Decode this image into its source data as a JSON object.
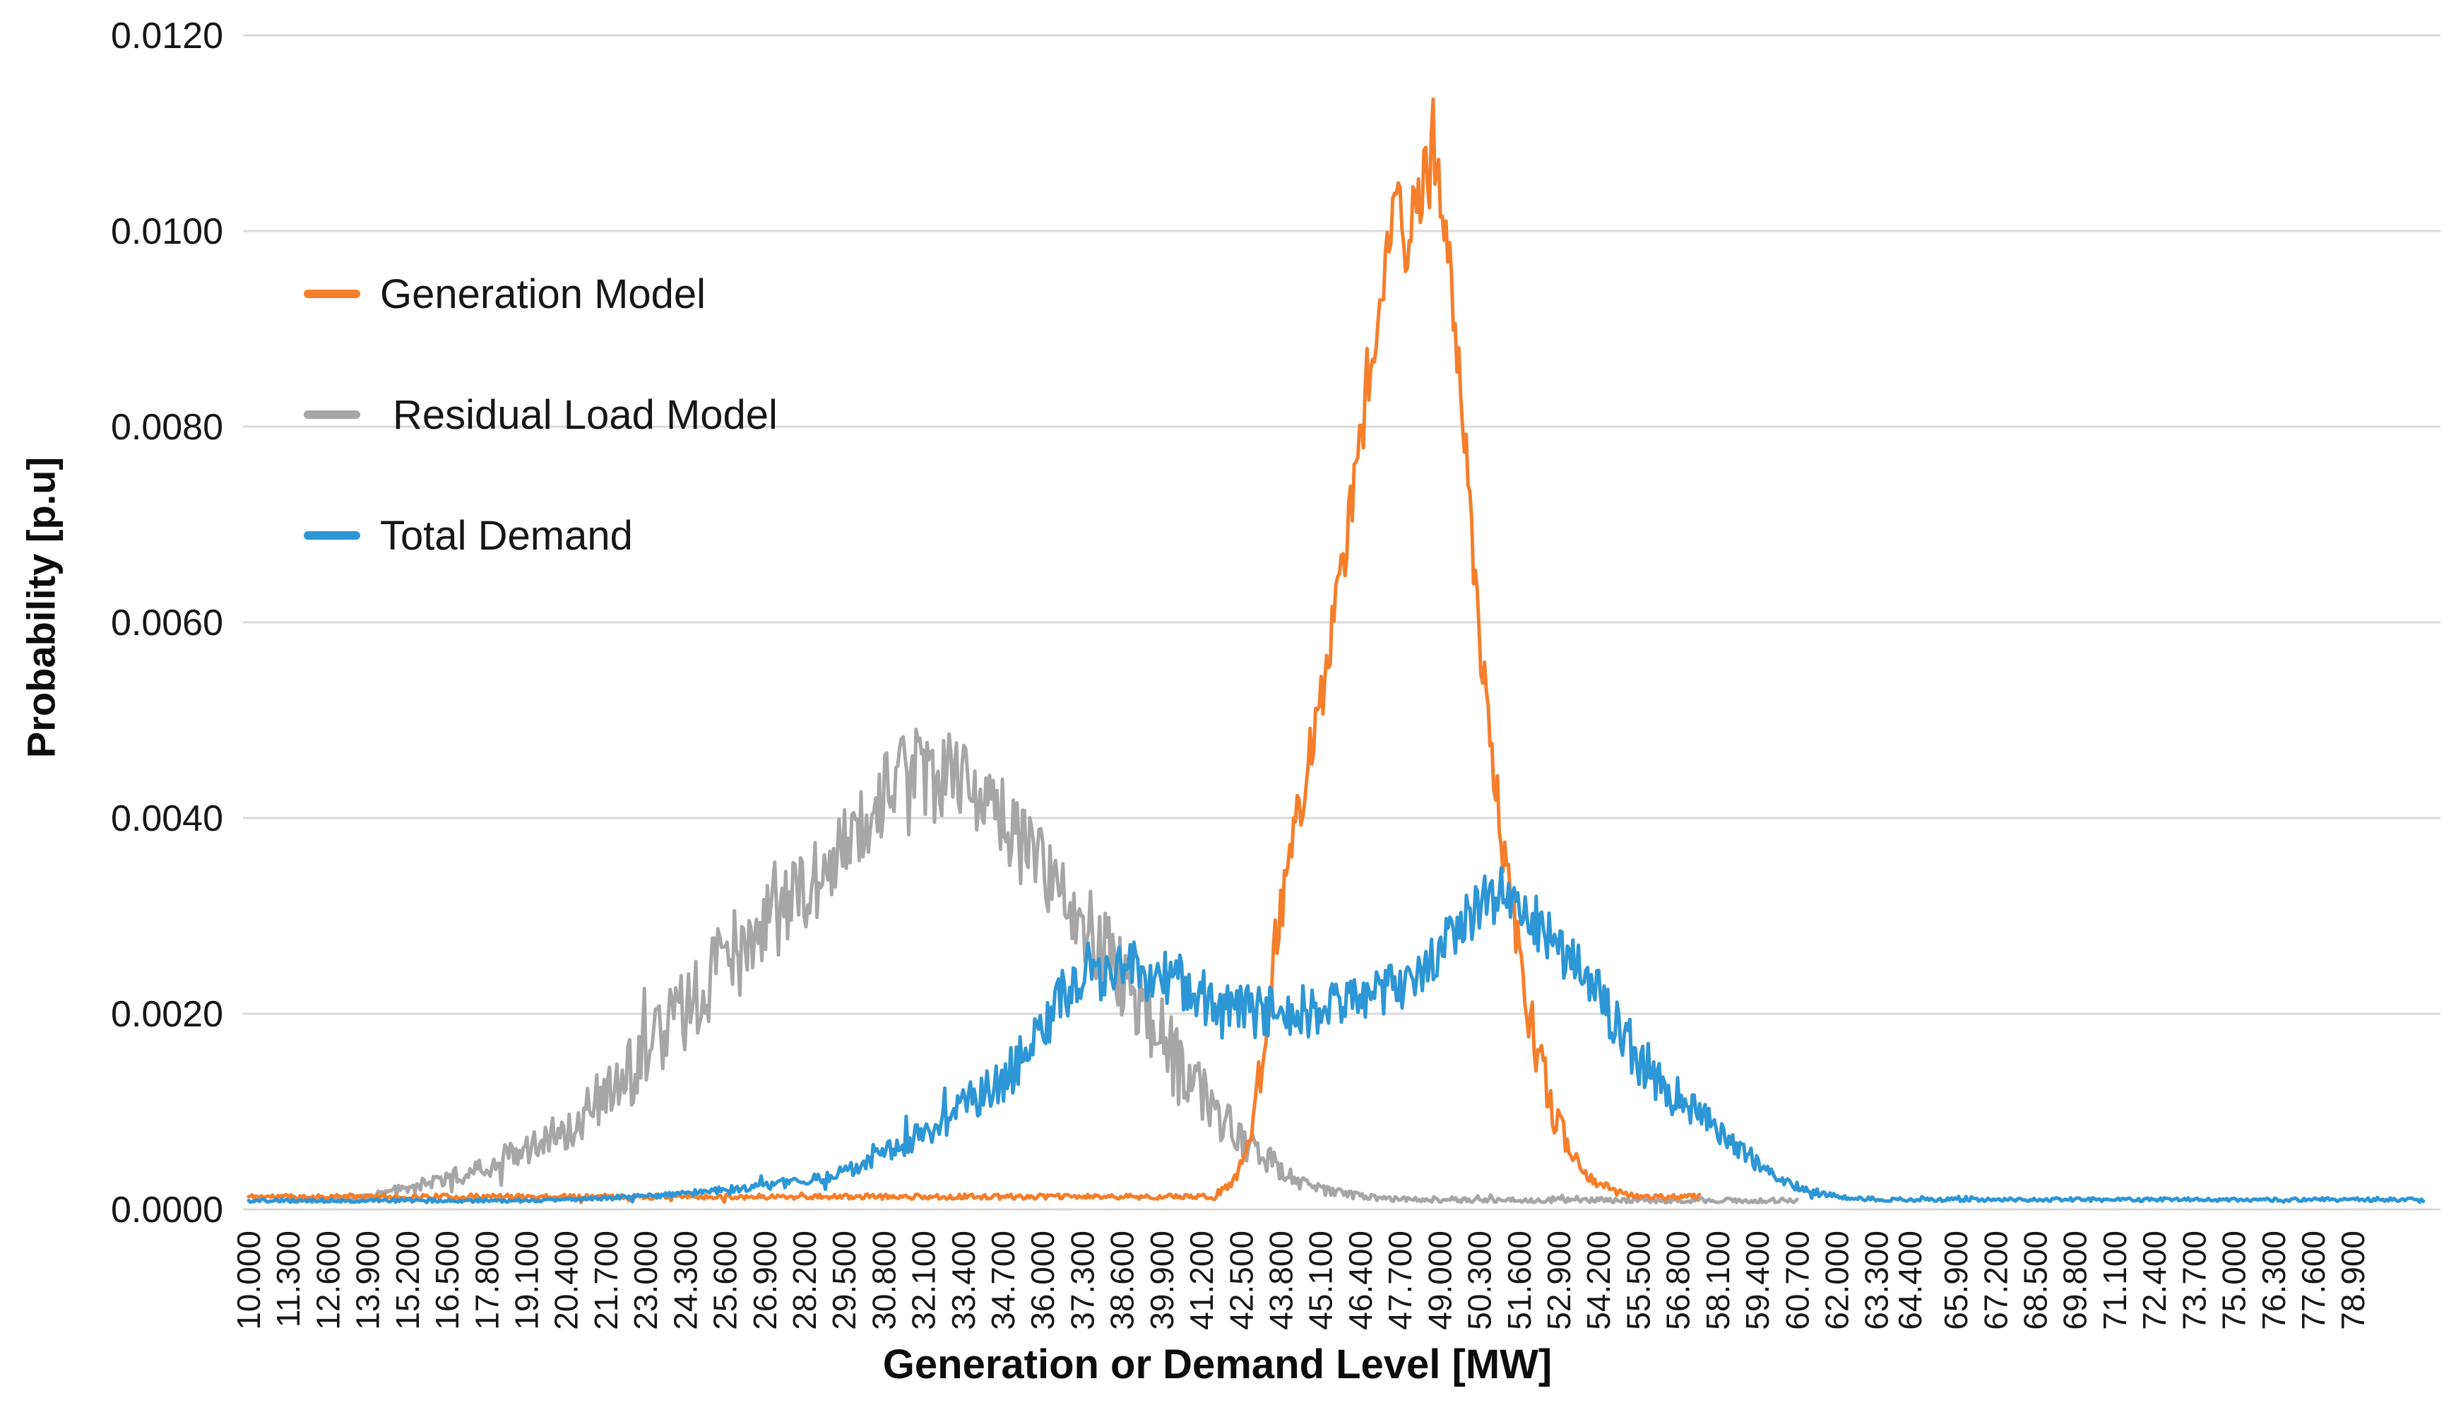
{
  "chart_data": {
    "type": "line",
    "title": "",
    "xlabel": "Generation or Demand Level [MW]",
    "ylabel": "Probability [p.u]",
    "ylim": [
      0,
      0.012
    ],
    "xlim_mw": [
      10,
      81.3
    ],
    "grid": true,
    "gridline_color": "#d9d9d9",
    "background_color": "#ffffff",
    "legend_position": "upper-left",
    "y_tick_labels": [
      "0.0120",
      "0.0100",
      "0.0080",
      "0.0060",
      "0.0040",
      "0.0020",
      "0.0000"
    ],
    "x_tick_labels": [
      "10.000",
      "11.300",
      "12.600",
      "13.900",
      "15.200",
      "16.500",
      "17.800",
      "19.100",
      "20.400",
      "21.700",
      "23.000",
      "24.300",
      "25.600",
      "26.900",
      "28.200",
      "29.500",
      "30.800",
      "32.100",
      "33.400",
      "34.700",
      "36.000",
      "37.300",
      "38.600",
      "39.900",
      "41.200",
      "42.500",
      "43.800",
      "45.100",
      "46.400",
      "47.700",
      "49.000",
      "50.300",
      "51.600",
      "52.900",
      "54.200",
      "55.500",
      "56.800",
      "58.100",
      "59.400",
      "60.700",
      "62.000",
      "63.300",
      "64.400",
      "65.900",
      "67.200",
      "68.500",
      "69.800",
      "71.100",
      "72.400",
      "73.700",
      "75.000",
      "76.300",
      "77.600",
      "78.900"
    ],
    "series": [
      {
        "name": "Generation Model",
        "color": "#f57e2b",
        "stroke_width": 5,
        "draw_order": 2,
        "noise_amp": 0.0003,
        "seed": 11,
        "peak_mw": 48.7,
        "peak_probability": 0.0112,
        "points": [
          [
            10,
            0.00013
          ],
          [
            41.6,
            0.00013
          ],
          [
            42.3,
            0.0003
          ],
          [
            42.8,
            0.0008
          ],
          [
            43.2,
            0.0015
          ],
          [
            43.6,
            0.0028
          ],
          [
            44.1,
            0.0036
          ],
          [
            44.6,
            0.0044
          ],
          [
            45.1,
            0.0052
          ],
          [
            45.7,
            0.0063
          ],
          [
            46.3,
            0.0076
          ],
          [
            46.8,
            0.0088
          ],
          [
            47.3,
            0.0098
          ],
          [
            47.6,
            0.0106
          ],
          [
            47.9,
            0.0097
          ],
          [
            48.3,
            0.0103
          ],
          [
            48.7,
            0.0108
          ],
          [
            49.0,
            0.0104
          ],
          [
            49.4,
            0.0094
          ],
          [
            49.8,
            0.008
          ],
          [
            50.2,
            0.0062
          ],
          [
            50.6,
            0.0049
          ],
          [
            51.1,
            0.0036
          ],
          [
            51.6,
            0.0026
          ],
          [
            52.1,
            0.0017
          ],
          [
            52.7,
            0.001
          ],
          [
            53.3,
            0.0006
          ],
          [
            54.0,
            0.0003
          ],
          [
            54.8,
            0.00018
          ],
          [
            55.6,
            0.00013
          ],
          [
            57.5,
            0.00013
          ]
        ]
      },
      {
        "name": "Residual Load Model",
        "color": "#a6a6a6",
        "stroke_width": 5,
        "draw_order": 1,
        "noise_amp": 0.00042,
        "seed": 23,
        "peak_mw": 31.8,
        "peak_probability": 0.0049,
        "points": [
          [
            11.6,
            9e-05
          ],
          [
            13.0,
            0.0001
          ],
          [
            14.3,
            0.00015
          ],
          [
            15.6,
            0.00025
          ],
          [
            16.9,
            0.00035
          ],
          [
            18.2,
            0.0005
          ],
          [
            19.5,
            0.0007
          ],
          [
            20.8,
            0.0009
          ],
          [
            22.1,
            0.0013
          ],
          [
            23.4,
            0.0017
          ],
          [
            24.7,
            0.0022
          ],
          [
            26.0,
            0.0027
          ],
          [
            27.3,
            0.003
          ],
          [
            28.6,
            0.0034
          ],
          [
            29.9,
            0.0039
          ],
          [
            31.0,
            0.0043
          ],
          [
            31.8,
            0.0046
          ],
          [
            32.5,
            0.0043
          ],
          [
            33.1,
            0.0045
          ],
          [
            33.7,
            0.0043
          ],
          [
            34.4,
            0.0041
          ],
          [
            35.1,
            0.0038
          ],
          [
            35.8,
            0.0036
          ],
          [
            36.5,
            0.0033
          ],
          [
            37.2,
            0.003
          ],
          [
            37.9,
            0.0027
          ],
          [
            38.6,
            0.0024
          ],
          [
            39.3,
            0.0021
          ],
          [
            40.0,
            0.0017
          ],
          [
            40.8,
            0.0013
          ],
          [
            41.6,
            0.001
          ],
          [
            42.5,
            0.0007
          ],
          [
            43.4,
            0.0005
          ],
          [
            44.3,
            0.0003
          ],
          [
            45.2,
            0.0002
          ],
          [
            46.2,
            0.00014
          ],
          [
            47.5,
            0.00011
          ],
          [
            49.0,
            0.0001
          ],
          [
            60.7,
            9e-05
          ]
        ]
      },
      {
        "name": "Total Demand",
        "color": "#2d96d5",
        "stroke_width": 5,
        "draw_order": 3,
        "noise_amp": 0.00028,
        "seed": 37,
        "peak_mw": 51.0,
        "peak_probability": 0.0035,
        "points": [
          [
            10,
            9e-05
          ],
          [
            20.0,
            9e-05
          ],
          [
            22.0,
            0.00012
          ],
          [
            24.0,
            0.00015
          ],
          [
            25.5,
            0.0002
          ],
          [
            27.0,
            0.00025
          ],
          [
            28.4,
            0.0003
          ],
          [
            29.7,
            0.0004
          ],
          [
            31.0,
            0.0006
          ],
          [
            32.3,
            0.0008
          ],
          [
            33.6,
            0.0011
          ],
          [
            34.9,
            0.0014
          ],
          [
            35.9,
            0.0018
          ],
          [
            36.7,
            0.0022
          ],
          [
            37.4,
            0.0025
          ],
          [
            38.0,
            0.0023
          ],
          [
            38.7,
            0.0026
          ],
          [
            39.4,
            0.0023
          ],
          [
            40.2,
            0.0024
          ],
          [
            41.0,
            0.0022
          ],
          [
            41.9,
            0.0021
          ],
          [
            43.0,
            0.002
          ],
          [
            44.2,
            0.002
          ],
          [
            45.4,
            0.0021
          ],
          [
            46.6,
            0.0022
          ],
          [
            47.7,
            0.0023
          ],
          [
            48.8,
            0.0026
          ],
          [
            49.7,
            0.0029
          ],
          [
            50.5,
            0.0032
          ],
          [
            51.1,
            0.0033
          ],
          [
            51.7,
            0.0031
          ],
          [
            52.3,
            0.0029
          ],
          [
            53.0,
            0.0026
          ],
          [
            53.9,
            0.0023
          ],
          [
            54.9,
            0.0018
          ],
          [
            55.9,
            0.0014
          ],
          [
            56.9,
            0.0011
          ],
          [
            57.9,
            0.00085
          ],
          [
            58.9,
            0.0006
          ],
          [
            59.9,
            0.00035
          ],
          [
            60.8,
            0.00022
          ],
          [
            61.8,
            0.00014
          ],
          [
            62.8,
            0.00011
          ],
          [
            64.0,
            0.0001
          ],
          [
            81.2,
            0.0001
          ]
        ]
      }
    ]
  },
  "legend": {
    "items": [
      {
        "label": "Generation Model",
        "color": "#f57e2b"
      },
      {
        "label": "Residual Load Model",
        "color": "#a6a6a6"
      },
      {
        "label": "Total Demand",
        "color": "#2d96d5"
      }
    ]
  },
  "axes": {
    "x_title": "Generation or Demand Level [MW]",
    "y_title": "Probability [p.u]"
  }
}
